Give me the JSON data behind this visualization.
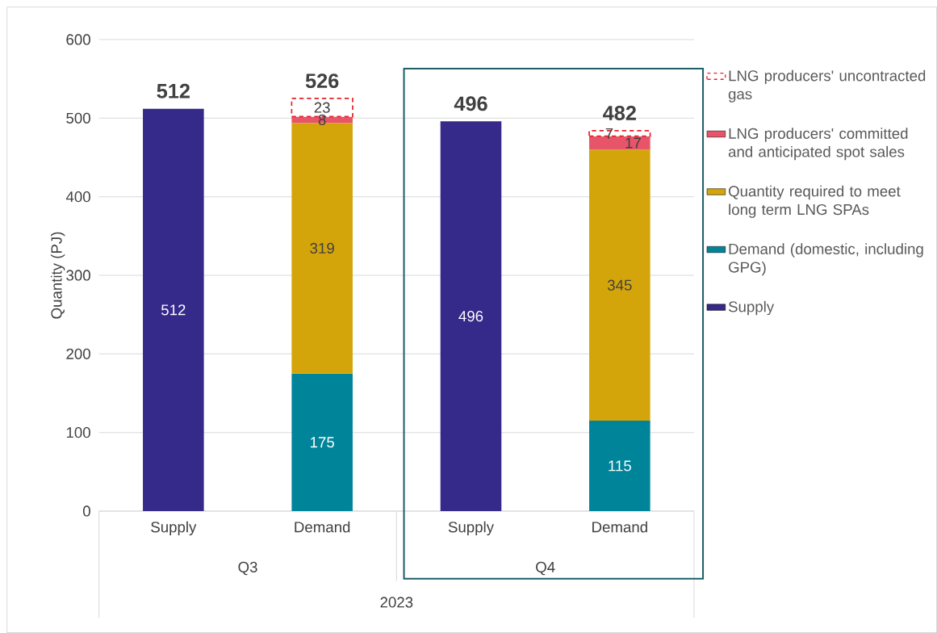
{
  "chart_data": {
    "type": "bar",
    "stacked": true,
    "ylabel": "Quantity (PJ)",
    "categories": [
      "Supply",
      "Demand",
      "Supply",
      "Demand"
    ],
    "series": [
      {
        "name": "Supply",
        "color": "#35298a",
        "values": [
          512,
          null,
          496,
          null
        ]
      },
      {
        "name": "Demand (domestic, including GPG)",
        "color": "#00849a",
        "values": [
          null,
          175,
          null,
          115
        ]
      },
      {
        "name": "Quantity required to meet long term LNG SPAs",
        "color": "#d4a50b",
        "values": [
          null,
          319,
          null,
          345
        ]
      },
      {
        "name": "LNG producers' committed and anticipated spot sales",
        "color": "#e8546a",
        "values": [
          null,
          8,
          null,
          17
        ]
      },
      {
        "name": "LNG producers' uncontracted gas",
        "color": "#e8212b",
        "line_style": "dashed",
        "values": [
          null,
          23,
          null,
          7
        ]
      }
    ],
    "totals": [
      "512",
      "526",
      "496",
      "482"
    ],
    "data_labels": true,
    "ylim": [
      0,
      600
    ],
    "yticks": [
      0,
      100,
      200,
      300,
      400,
      500,
      600
    ],
    "grid": "y",
    "legend": "right",
    "annotations": [
      "Q3",
      "Q4",
      "2023"
    ]
  }
}
